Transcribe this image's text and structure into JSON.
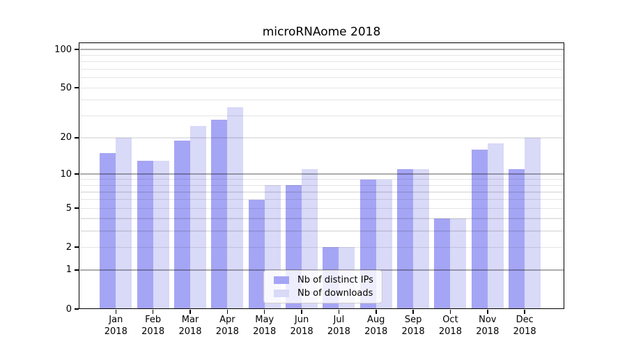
{
  "chart_data": {
    "type": "bar",
    "title": "microRNAome 2018",
    "categories": [
      "Jan",
      "Feb",
      "Mar",
      "Apr",
      "May",
      "Jun",
      "Jul",
      "Aug",
      "Sep",
      "Oct",
      "Nov",
      "Dec"
    ],
    "year_label": "2018",
    "series": [
      {
        "name": "Nb of distinct IPs",
        "key": "ips",
        "color": "#a5a5f5",
        "values": [
          15,
          13,
          19,
          28,
          6,
          8,
          2,
          9,
          11,
          4,
          16,
          11
        ]
      },
      {
        "name": "Nb of downloads",
        "key": "downloads",
        "color": "#d9d9f8",
        "values": [
          20,
          13,
          25,
          35,
          8,
          11,
          2,
          9,
          11,
          4,
          18,
          20
        ]
      }
    ],
    "y_axis": {
      "scale": "log1p",
      "tick_values": [
        100,
        50,
        20,
        10,
        5,
        2,
        1,
        0
      ],
      "major_gridlines": [
        1,
        10,
        100
      ],
      "minor_gridlines": [
        2,
        3,
        4,
        5,
        6,
        7,
        8,
        9,
        20,
        30,
        40,
        50,
        60,
        70,
        80,
        90
      ],
      "range_max": 113
    },
    "grid": true,
    "legend_position": "lower center"
  }
}
